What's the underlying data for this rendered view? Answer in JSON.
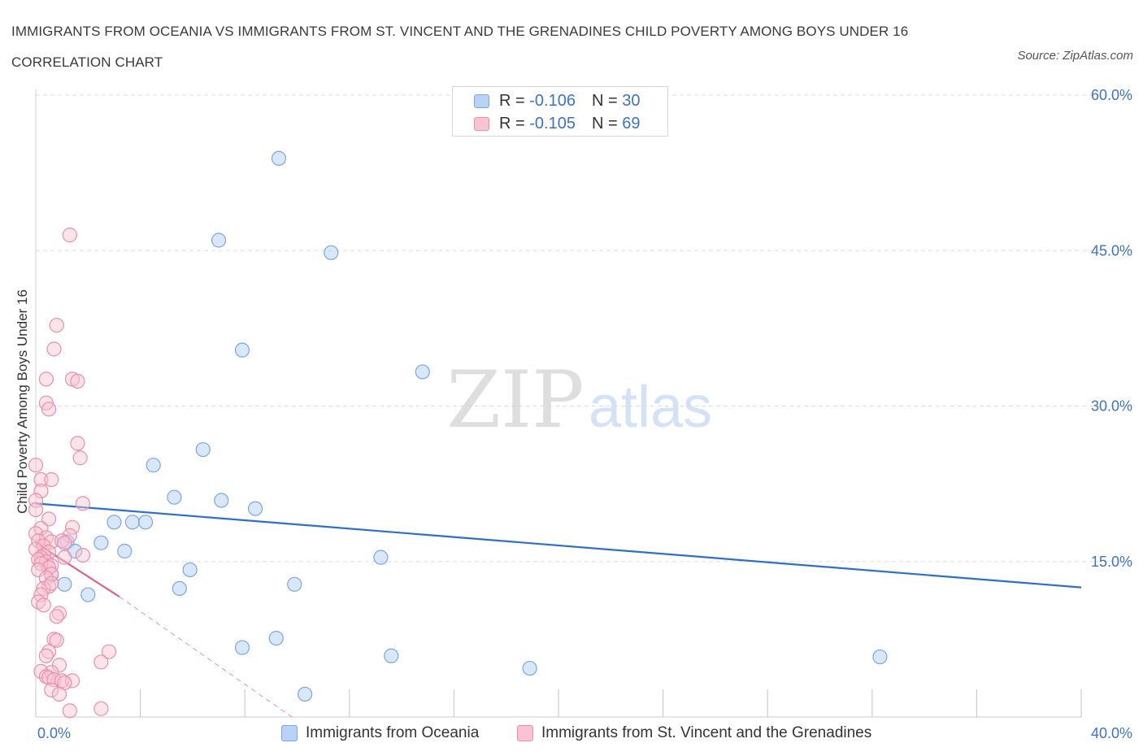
{
  "title": "IMMIGRANTS FROM OCEANIA VS IMMIGRANTS FROM ST. VINCENT AND THE GRENADINES CHILD POVERTY AMONG BOYS UNDER 16 CORRELATION CHART",
  "source": "Source: ZipAtlas.com",
  "watermark": {
    "zip": "ZIP",
    "atlas": "atlas"
  },
  "legend_top": [
    {
      "r_label": "R =",
      "r_value": "-0.106",
      "n_label": "N =",
      "n_value": "30"
    },
    {
      "r_label": "R =",
      "r_value": "-0.105",
      "n_label": "N =",
      "n_value": "69"
    }
  ],
  "colors": {
    "oceania_fill": "#b9d3f7",
    "oceania_stroke": "#7aa6e3",
    "oceania_line": "#2d6fcc",
    "svg_fill": "#f9c3d3",
    "svg_stroke": "#ea8fab",
    "svg_line": "#e0608a",
    "axis_text": "#3d72c9",
    "grid": "#dddddd"
  },
  "chart_data": {
    "type": "scatter",
    "title": "IMMIGRANTS FROM OCEANIA VS IMMIGRANTS FROM ST. VINCENT AND THE GRENADINES CHILD POVERTY AMONG BOYS UNDER 16 CORRELATION CHART",
    "xlabel": "",
    "ylabel": "Child Poverty Among Boys Under 16",
    "xlim": [
      0,
      40
    ],
    "ylim": [
      0,
      60
    ],
    "x_tick_labels": [
      "0.0%",
      "40.0%"
    ],
    "y_ticks": [
      15,
      30,
      45,
      60
    ],
    "y_tick_labels": [
      "15.0%",
      "30.0%",
      "45.0%",
      "60.0%"
    ],
    "grid": true,
    "legend_position": "bottom",
    "series": [
      {
        "name": "Immigrants from Oceania",
        "r": -0.106,
        "n": 30,
        "trend": {
          "x": [
            0,
            40
          ],
          "y": [
            20.6,
            12.5
          ]
        },
        "points": [
          [
            9.3,
            53.9
          ],
          [
            7.0,
            46.0
          ],
          [
            11.3,
            44.8
          ],
          [
            7.9,
            35.4
          ],
          [
            14.8,
            33.3
          ],
          [
            6.4,
            25.8
          ],
          [
            4.5,
            24.3
          ],
          [
            5.3,
            21.2
          ],
          [
            7.1,
            20.9
          ],
          [
            8.4,
            20.1
          ],
          [
            3.0,
            18.8
          ],
          [
            3.7,
            18.8
          ],
          [
            4.2,
            18.8
          ],
          [
            2.5,
            16.8
          ],
          [
            1.2,
            16.9
          ],
          [
            1.5,
            16.0
          ],
          [
            3.4,
            16.0
          ],
          [
            13.2,
            15.4
          ],
          [
            5.9,
            14.2
          ],
          [
            0.6,
            13.7
          ],
          [
            1.1,
            12.8
          ],
          [
            9.9,
            12.8
          ],
          [
            5.5,
            12.4
          ],
          [
            2.0,
            11.8
          ],
          [
            9.2,
            7.6
          ],
          [
            7.9,
            6.7
          ],
          [
            13.6,
            5.9
          ],
          [
            32.3,
            5.8
          ],
          [
            18.9,
            4.7
          ],
          [
            10.3,
            2.2
          ]
        ]
      },
      {
        "name": "Immigrants from St. Vincent and the Grenadines",
        "r": -0.105,
        "n": 69,
        "trend": {
          "x": [
            0,
            3.2
          ],
          "y": [
            16.8,
            11.6
          ]
        },
        "trend_dashed": {
          "x": [
            3.2,
            9.8
          ],
          "y": [
            11.6,
            0
          ]
        },
        "points": [
          [
            1.3,
            46.5
          ],
          [
            0.8,
            37.8
          ],
          [
            0.7,
            35.5
          ],
          [
            1.4,
            32.6
          ],
          [
            1.6,
            32.4
          ],
          [
            0.4,
            32.6
          ],
          [
            0.4,
            30.3
          ],
          [
            0.5,
            29.7
          ],
          [
            1.6,
            26.4
          ],
          [
            1.7,
            25.0
          ],
          [
            0.0,
            24.3
          ],
          [
            0.2,
            22.9
          ],
          [
            0.6,
            22.9
          ],
          [
            0.2,
            21.8
          ],
          [
            0.0,
            20.9
          ],
          [
            1.8,
            20.6
          ],
          [
            0.0,
            20.0
          ],
          [
            0.5,
            19.1
          ],
          [
            0.2,
            18.2
          ],
          [
            1.4,
            18.3
          ],
          [
            0.0,
            17.7
          ],
          [
            0.4,
            17.3
          ],
          [
            1.3,
            17.5
          ],
          [
            0.1,
            17.0
          ],
          [
            0.6,
            16.9
          ],
          [
            1.0,
            17.0
          ],
          [
            1.1,
            16.8
          ],
          [
            0.3,
            16.5
          ],
          [
            0.0,
            16.2
          ],
          [
            0.5,
            15.9
          ],
          [
            0.3,
            15.6
          ],
          [
            1.8,
            15.6
          ],
          [
            0.2,
            15.4
          ],
          [
            1.1,
            15.4
          ],
          [
            0.1,
            15.2
          ],
          [
            0.4,
            15.0
          ],
          [
            0.6,
            14.6
          ],
          [
            0.2,
            14.8
          ],
          [
            0.5,
            14.4
          ],
          [
            0.1,
            14.2
          ],
          [
            0.6,
            13.8
          ],
          [
            0.4,
            13.4
          ],
          [
            0.5,
            12.6
          ],
          [
            0.3,
            12.4
          ],
          [
            0.6,
            12.9
          ],
          [
            0.2,
            11.8
          ],
          [
            0.1,
            11.1
          ],
          [
            0.3,
            10.8
          ],
          [
            0.9,
            10.0
          ],
          [
            0.8,
            9.7
          ],
          [
            0.7,
            7.5
          ],
          [
            0.8,
            7.4
          ],
          [
            0.5,
            6.3
          ],
          [
            0.4,
            5.9
          ],
          [
            2.8,
            6.3
          ],
          [
            2.5,
            5.3
          ],
          [
            0.9,
            5.0
          ],
          [
            0.2,
            4.4
          ],
          [
            0.6,
            4.3
          ],
          [
            0.4,
            3.9
          ],
          [
            0.5,
            3.8
          ],
          [
            0.7,
            3.6
          ],
          [
            1.0,
            3.5
          ],
          [
            1.4,
            3.5
          ],
          [
            1.1,
            3.3
          ],
          [
            0.6,
            2.6
          ],
          [
            0.9,
            2.2
          ],
          [
            1.3,
            0.6
          ],
          [
            2.5,
            0.8
          ]
        ]
      }
    ]
  }
}
